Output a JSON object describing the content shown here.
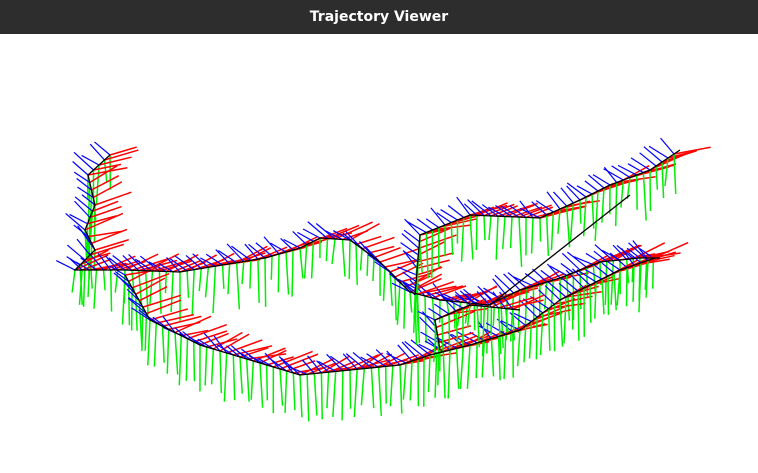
{
  "window": {
    "title": "Trajectory Viewer"
  }
}
